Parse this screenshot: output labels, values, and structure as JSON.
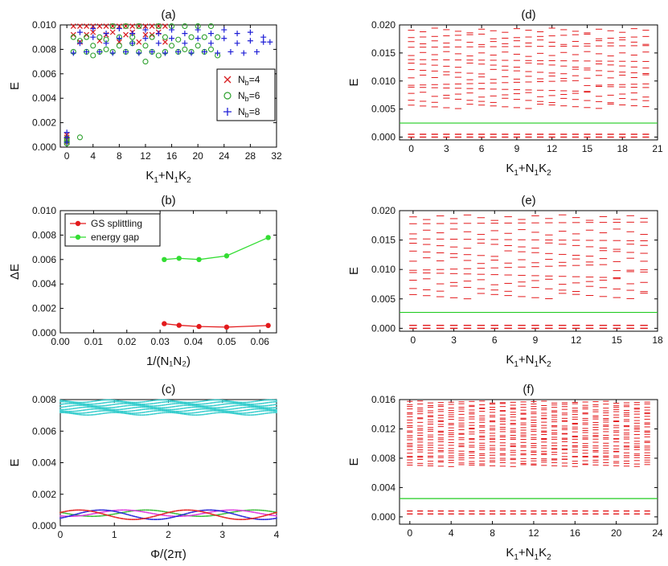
{
  "panels": {
    "a": {
      "label": "(a)",
      "type": "scatter",
      "ylabel": "E",
      "xlabel_main": "K",
      "xlabel_sub1": "1",
      "xlabel_mid": "+N",
      "xlabel_sub2": "1",
      "xlabel_mid2": "K",
      "xlabel_sub3": "2",
      "xlim": [
        -1,
        32
      ],
      "ylim": [
        0,
        0.01
      ],
      "xticks": [
        0,
        4,
        8,
        12,
        16,
        20,
        24,
        28,
        32
      ],
      "yticks": [
        0.0,
        0.002,
        0.004,
        0.006,
        0.008,
        0.01
      ],
      "ytick_labels": [
        "0.000",
        "0.002",
        "0.004",
        "0.006",
        "0.008",
        "0.010"
      ],
      "legend": [
        {
          "marker": "x",
          "color": "#d7191c",
          "base": "N",
          "sub": "b",
          "tail": "=4"
        },
        {
          "marker": "o",
          "color": "#2ca02c",
          "base": "N",
          "sub": "b",
          "tail": "=6"
        },
        {
          "marker": "+",
          "color": "#1f1fd6",
          "base": "N",
          "sub": "b",
          "tail": "=8"
        }
      ]
    },
    "b": {
      "label": "(b)",
      "type": "line",
      "ylabel": "ΔE",
      "xlabel": "1/(N₁N₂)",
      "xlim": [
        0,
        0.065
      ],
      "ylim": [
        0,
        0.01
      ],
      "xticks": [
        0.0,
        0.01,
        0.02,
        0.03,
        0.04,
        0.05,
        0.06
      ],
      "xtick_labels": [
        "0.00",
        "0.01",
        "0.02",
        "0.03",
        "0.04",
        "0.05",
        "0.06"
      ],
      "yticks": [
        0.0,
        0.002,
        0.004,
        0.006,
        0.008,
        0.01
      ],
      "ytick_labels": [
        "0.000",
        "0.002",
        "0.004",
        "0.006",
        "0.008",
        "0.010"
      ]
    },
    "c": {
      "label": "(c)",
      "type": "line",
      "ylabel": "E",
      "xlabel": "Φ/(2π)",
      "xlim": [
        0,
        4
      ],
      "ylim": [
        0,
        0.008
      ],
      "xticks": [
        0,
        1,
        2,
        3,
        4
      ],
      "yticks": [
        0.0,
        0.002,
        0.004,
        0.006,
        0.008
      ],
      "ytick_labels": [
        "0.000",
        "0.002",
        "0.004",
        "0.006",
        "0.008"
      ]
    },
    "d": {
      "label": "(d)",
      "type": "scatter",
      "ylabel": "E",
      "xlim": [
        -1,
        21
      ],
      "ylim": [
        -0.0005,
        0.02
      ],
      "xticks": [
        0,
        3,
        6,
        9,
        12,
        15,
        18,
        21
      ],
      "yticks": [
        0.0,
        0.005,
        0.01,
        0.015,
        0.02
      ],
      "ytick_labels": [
        "0.000",
        "0.005",
        "0.010",
        "0.015",
        "0.020"
      ],
      "gap_line": 0.0025
    },
    "e": {
      "label": "(e)",
      "type": "scatter",
      "ylabel": "E",
      "xlim": [
        -1,
        18
      ],
      "ylim": [
        -0.0005,
        0.02
      ],
      "xticks": [
        0,
        3,
        6,
        9,
        12,
        15,
        18
      ],
      "yticks": [
        0.0,
        0.005,
        0.01,
        0.015,
        0.02
      ],
      "ytick_labels": [
        "0.000",
        "0.005",
        "0.010",
        "0.015",
        "0.020"
      ],
      "gap_line": 0.0027
    },
    "f": {
      "label": "(f)",
      "type": "scatter",
      "ylabel": "E",
      "xlim": [
        -1,
        24
      ],
      "ylim": [
        -0.001,
        0.016
      ],
      "xticks": [
        0,
        4,
        8,
        12,
        16,
        20,
        24
      ],
      "yticks": [
        0.0,
        0.004,
        0.008,
        0.012,
        0.016
      ],
      "ytick_labels": [
        "0.000",
        "0.004",
        "0.008",
        "0.012",
        "0.016"
      ],
      "gap_line": 0.0025
    }
  },
  "chart_data": [
    {
      "panel": "a",
      "type": "scatter",
      "series": [
        {
          "name": "N_b=4",
          "color": "#d7191c",
          "marker": "x",
          "x": [
            0,
            0,
            0,
            0,
            1,
            1,
            2,
            2,
            3,
            3,
            4,
            4,
            5,
            5,
            6,
            6,
            7,
            7,
            8,
            8,
            9,
            9,
            10,
            10,
            11,
            11,
            12,
            12,
            13,
            13,
            14,
            14,
            15,
            15
          ],
          "y": [
            0.0004,
            0.0006,
            0.0008,
            0.001,
            0.0099,
            0.0092,
            0.0099,
            0.0086,
            0.0099,
            0.0092,
            0.0099,
            0.0094,
            0.0099,
            0.0087,
            0.0099,
            0.0092,
            0.0099,
            0.0094,
            0.0099,
            0.0086,
            0.0099,
            0.0092,
            0.0099,
            0.0094,
            0.0099,
            0.0086,
            0.0099,
            0.0092,
            0.0099,
            0.0092,
            0.0099,
            0.0094,
            0.0099,
            0.0086
          ]
        },
        {
          "name": "N_b=6",
          "color": "#2ca02c",
          "marker": "o",
          "x": [
            0,
            0,
            0,
            1,
            1,
            2,
            2,
            3,
            3,
            4,
            4,
            5,
            5,
            6,
            6,
            7,
            7,
            8,
            8,
            9,
            9,
            10,
            10,
            11,
            11,
            12,
            12,
            13,
            13,
            14,
            14,
            15,
            15,
            16,
            16,
            17,
            17,
            18,
            18,
            19,
            19,
            20,
            20,
            21,
            21,
            22,
            22,
            23,
            23
          ],
          "y": [
            0.0003,
            0.0005,
            0.0007,
            0.009,
            0.0078,
            0.0008,
            0.0087,
            0.009,
            0.0078,
            0.0083,
            0.0075,
            0.009,
            0.0078,
            0.0088,
            0.008,
            0.0099,
            0.0078,
            0.009,
            0.0083,
            0.0099,
            0.0078,
            0.009,
            0.0085,
            0.0099,
            0.0078,
            0.0083,
            0.007,
            0.009,
            0.0078,
            0.0099,
            0.0075,
            0.009,
            0.0078,
            0.0099,
            0.0083,
            0.0088,
            0.0078,
            0.0099,
            0.008,
            0.009,
            0.0078,
            0.0099,
            0.0083,
            0.009,
            0.0078,
            0.0099,
            0.008,
            0.009,
            0.0075
          ]
        },
        {
          "name": "N_b=8",
          "color": "#1f1fd6",
          "marker": "+",
          "x": [
            0,
            0,
            0,
            1,
            2,
            2,
            3,
            4,
            4,
            5,
            6,
            6,
            7,
            8,
            8,
            9,
            10,
            10,
            11,
            12,
            12,
            13,
            14,
            14,
            15,
            16,
            16,
            17,
            18,
            18,
            19,
            20,
            20,
            21,
            22,
            22,
            23,
            24,
            24,
            25,
            26,
            26,
            27,
            28,
            28,
            29,
            30,
            30,
            31
          ],
          "y": [
            0.0004,
            0.0008,
            0.0012,
            0.0077,
            0.0085,
            0.0094,
            0.0078,
            0.009,
            0.0097,
            0.0078,
            0.0085,
            0.0093,
            0.0077,
            0.0089,
            0.0097,
            0.0078,
            0.0085,
            0.0093,
            0.0077,
            0.0089,
            0.0096,
            0.0078,
            0.0085,
            0.0093,
            0.0077,
            0.0089,
            0.0096,
            0.0078,
            0.0085,
            0.0093,
            0.0077,
            0.0089,
            0.0096,
            0.0078,
            0.0085,
            0.0093,
            0.0077,
            0.0089,
            0.0096,
            0.0078,
            0.0085,
            0.0093,
            0.0077,
            0.0087,
            0.0094,
            0.0078,
            0.0086,
            0.009,
            0.0086
          ]
        }
      ]
    },
    {
      "panel": "b",
      "type": "line",
      "series": [
        {
          "name": "GS splittling",
          "color": "#e31a1c",
          "x": [
            0.03125,
            0.0357,
            0.0417,
            0.05,
            0.0625
          ],
          "y": [
            0.00075,
            0.00062,
            0.00052,
            0.00047,
            0.0006
          ]
        },
        {
          "name": "energy gap",
          "color": "#33dd33",
          "x": [
            0.03125,
            0.0357,
            0.0417,
            0.05,
            0.0625
          ],
          "y": [
            0.006,
            0.0061,
            0.006,
            0.0063,
            0.0078
          ]
        }
      ]
    },
    {
      "panel": "c",
      "type": "line",
      "bands": [
        {
          "color": "#33cccc",
          "center": 0.0075,
          "amplitude": 0.0004
        },
        {
          "color": "#33bb33",
          "center": 0.0008,
          "amplitude": 0.0002
        },
        {
          "color": "#dd33dd",
          "center": 0.0008,
          "amplitude": 0.0002
        },
        {
          "color": "#1f1fd6",
          "center": 0.0007,
          "amplitude": 0.0003
        },
        {
          "color": "#e31a1c",
          "center": 0.0007,
          "amplitude": 0.0003
        }
      ]
    },
    {
      "panel": "d",
      "type": "scatter",
      "color": "#e31a1c",
      "ground_states": [
        0.0,
        0.0005
      ],
      "gap": 0.0025,
      "levels_from": 0.0055,
      "levels_to": 0.02
    },
    {
      "panel": "e",
      "type": "scatter",
      "color": "#e31a1c",
      "ground_states": [
        0.0,
        0.0005
      ],
      "gap": 0.0027,
      "levels_from": 0.0055,
      "levels_to": 0.02
    },
    {
      "panel": "f",
      "type": "scatter",
      "color": "#e31a1c",
      "ground_states": [
        0.0004,
        0.0008
      ],
      "gap": 0.0025,
      "levels_from": 0.007,
      "levels_to": 0.016
    }
  ]
}
